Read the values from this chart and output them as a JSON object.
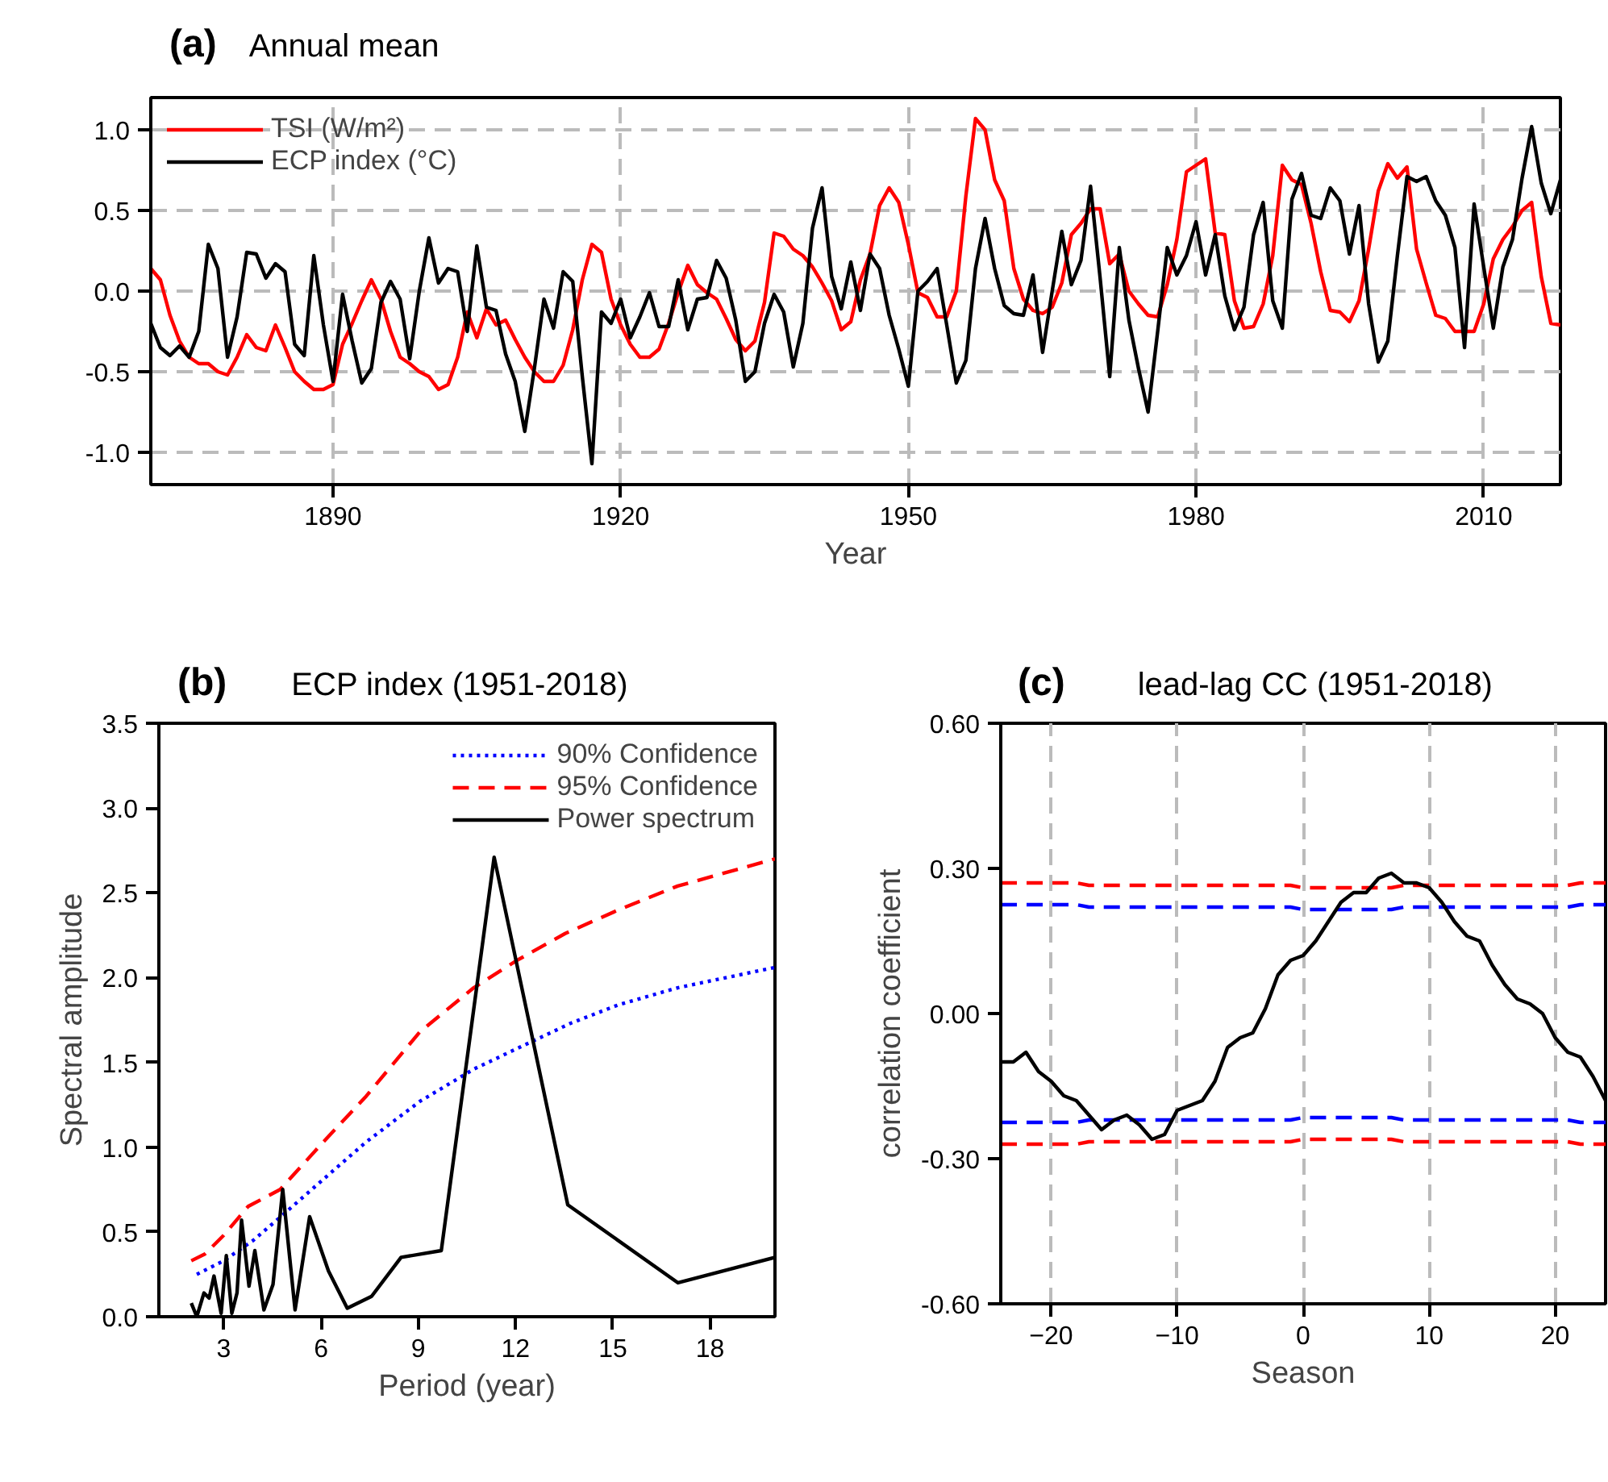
{
  "chart_data": [
    {
      "type": "line",
      "title": "Annual mean",
      "annotations": [
        "(a)"
      ],
      "xlabel": "Year",
      "xlim": [
        1871,
        2018
      ],
      "xticks": [
        1890,
        1920,
        1950,
        1980,
        2010
      ],
      "ylim": [
        -1.2,
        1.2
      ],
      "yticks": [
        {
          "value": -1.0,
          "label": "-1.0"
        },
        {
          "value": -0.5,
          "label": "-0.5"
        },
        {
          "value": 0.0,
          "label": "0.0"
        },
        {
          "value": 0.5,
          "label": "0.5"
        },
        {
          "value": 1.0,
          "label": "1.0"
        }
      ],
      "grid": true,
      "legend": "top left",
      "x": [
        1871,
        1872,
        1873,
        1874,
        1875,
        1876,
        1877,
        1878,
        1879,
        1880,
        1881,
        1882,
        1883,
        1884,
        1885,
        1886,
        1887,
        1888,
        1889,
        1890,
        1891,
        1892,
        1893,
        1894,
        1895,
        1896,
        1897,
        1898,
        1899,
        1900,
        1901,
        1902,
        1903,
        1904,
        1905,
        1906,
        1907,
        1908,
        1909,
        1910,
        1911,
        1912,
        1913,
        1914,
        1915,
        1916,
        1917,
        1918,
        1919,
        1920,
        1921,
        1922,
        1923,
        1924,
        1925,
        1926,
        1927,
        1928,
        1929,
        1930,
        1931,
        1932,
        1933,
        1934,
        1935,
        1936,
        1937,
        1938,
        1939,
        1940,
        1941,
        1942,
        1943,
        1944,
        1945,
        1946,
        1947,
        1948,
        1949,
        1950,
        1951,
        1952,
        1953,
        1954,
        1955,
        1956,
        1957,
        1958,
        1959,
        1960,
        1961,
        1962,
        1963,
        1964,
        1965,
        1966,
        1967,
        1968,
        1969,
        1970,
        1971,
        1972,
        1973,
        1974,
        1975,
        1976,
        1977,
        1978,
        1979,
        1980,
        1981,
        1982,
        1983,
        1984,
        1985,
        1986,
        1987,
        1988,
        1989,
        1990,
        1991,
        1992,
        1993,
        1994,
        1995,
        1996,
        1997,
        1998,
        1999,
        2000,
        2001,
        2002,
        2003,
        2004,
        2005,
        2006,
        2007,
        2008,
        2009,
        2010,
        2011,
        2012,
        2013,
        2014,
        2015,
        2016,
        2017,
        2018
      ],
      "series": [
        {
          "name": "TSI (W/m²)",
          "color": "#ff0000",
          "values": [
            0.14,
            0.07,
            -0.15,
            -0.31,
            -0.41,
            -0.45,
            -0.45,
            -0.5,
            -0.52,
            -0.41,
            -0.27,
            -0.35,
            -0.37,
            -0.21,
            -0.35,
            -0.5,
            -0.56,
            -0.61,
            -0.61,
            -0.58,
            -0.33,
            -0.2,
            -0.06,
            0.07,
            -0.05,
            -0.25,
            -0.41,
            -0.45,
            -0.5,
            -0.53,
            -0.61,
            -0.58,
            -0.41,
            -0.13,
            -0.29,
            -0.11,
            -0.21,
            -0.18,
            -0.3,
            -0.41,
            -0.5,
            -0.56,
            -0.56,
            -0.46,
            -0.24,
            0.07,
            0.29,
            0.24,
            -0.05,
            -0.21,
            -0.33,
            -0.41,
            -0.41,
            -0.36,
            -0.2,
            -0.01,
            0.16,
            0.04,
            -0.01,
            -0.05,
            -0.17,
            -0.3,
            -0.37,
            -0.31,
            -0.07,
            0.36,
            0.34,
            0.26,
            0.22,
            0.15,
            0.05,
            -0.06,
            -0.24,
            -0.19,
            0.07,
            0.23,
            0.53,
            0.64,
            0.55,
            0.29,
            -0.01,
            -0.04,
            -0.16,
            -0.16,
            0.0,
            0.59,
            1.07,
            1.0,
            0.69,
            0.56,
            0.14,
            -0.05,
            -0.12,
            -0.14,
            -0.1,
            0.05,
            0.35,
            0.42,
            0.51,
            0.51,
            0.17,
            0.23,
            0.0,
            -0.08,
            -0.15,
            -0.16,
            0.04,
            0.32,
            0.74,
            0.78,
            0.82,
            0.36,
            0.35,
            -0.06,
            -0.23,
            -0.22,
            -0.08,
            0.22,
            0.78,
            0.69,
            0.66,
            0.42,
            0.12,
            -0.12,
            -0.13,
            -0.19,
            -0.06,
            0.26,
            0.62,
            0.79,
            0.7,
            0.77,
            0.26,
            0.05,
            -0.15,
            -0.17,
            -0.25,
            -0.25,
            -0.25,
            -0.08,
            0.2,
            0.32,
            0.4,
            0.5,
            0.55,
            0.09,
            -0.2,
            -0.21
          ]
        },
        {
          "name": "ECP index (°C)",
          "color": "#000000",
          "values": [
            -0.2,
            -0.35,
            -0.4,
            -0.34,
            -0.41,
            -0.25,
            0.29,
            0.14,
            -0.41,
            -0.16,
            0.24,
            0.23,
            0.08,
            0.17,
            0.12,
            -0.33,
            -0.4,
            0.22,
            -0.21,
            -0.56,
            -0.02,
            -0.31,
            -0.57,
            -0.48,
            -0.07,
            0.06,
            -0.05,
            -0.42,
            0.0,
            0.33,
            0.05,
            0.14,
            0.12,
            -0.25,
            0.28,
            -0.1,
            -0.12,
            -0.39,
            -0.56,
            -0.87,
            -0.48,
            -0.05,
            -0.23,
            0.12,
            0.06,
            -0.53,
            -1.07,
            -0.13,
            -0.2,
            -0.05,
            -0.29,
            -0.16,
            -0.01,
            -0.22,
            -0.22,
            0.07,
            -0.24,
            -0.05,
            -0.04,
            0.19,
            0.08,
            -0.18,
            -0.56,
            -0.5,
            -0.2,
            -0.02,
            -0.13,
            -0.47,
            -0.2,
            0.39,
            0.64,
            0.09,
            -0.11,
            0.18,
            -0.12,
            0.23,
            0.14,
            -0.15,
            -0.36,
            -0.59,
            0.0,
            0.06,
            0.14,
            -0.21,
            -0.57,
            -0.43,
            0.14,
            0.45,
            0.14,
            -0.09,
            -0.14,
            -0.15,
            0.1,
            -0.38,
            0.0,
            0.37,
            0.04,
            0.19,
            0.65,
            0.08,
            -0.53,
            0.27,
            -0.18,
            -0.48,
            -0.75,
            -0.25,
            0.27,
            0.1,
            0.22,
            0.43,
            0.1,
            0.35,
            -0.03,
            -0.24,
            -0.1,
            0.35,
            0.55,
            -0.06,
            -0.23,
            0.57,
            0.73,
            0.47,
            0.45,
            0.64,
            0.56,
            0.23,
            0.53,
            -0.08,
            -0.44,
            -0.31,
            0.22,
            0.71,
            0.68,
            0.71,
            0.56,
            0.47,
            0.27,
            -0.35,
            0.54,
            0.15,
            -0.23,
            0.15,
            0.32,
            0.7,
            1.02,
            0.67,
            0.48,
            0.69
          ]
        }
      ]
    },
    {
      "type": "line",
      "title": "ECP index (1951-2018)",
      "annotations": [
        "(b)"
      ],
      "xlabel": "Period (year)",
      "ylabel": "Spectral amplitude",
      "xlim": [
        1,
        20
      ],
      "xticks": [
        3,
        6,
        9,
        12,
        15,
        18
      ],
      "ylim": [
        0,
        3.5
      ],
      "yticks": [
        {
          "value": 0.0,
          "label": "0.0"
        },
        {
          "value": 0.5,
          "label": "0.5"
        },
        {
          "value": 1.0,
          "label": "1.0"
        },
        {
          "value": 1.5,
          "label": "1.5"
        },
        {
          "value": 2.0,
          "label": "2.0"
        },
        {
          "value": 2.5,
          "label": "2.5"
        },
        {
          "value": 3.0,
          "label": "3.0"
        },
        {
          "value": 3.5,
          "label": "3.5"
        }
      ],
      "legend": "top right",
      "series": [
        {
          "name": "90% Confidence",
          "color": "#0000ff",
          "line_style": "dotted",
          "x": [
            2.17,
            3.0,
            3.91,
            4.82,
            6.07,
            7.39,
            9.05,
            10.71,
            12.03,
            13.69,
            15.18,
            17.0,
            20.0
          ],
          "values": [
            0.25,
            0.33,
            0.45,
            0.6,
            0.81,
            1.03,
            1.27,
            1.46,
            1.58,
            1.73,
            1.84,
            1.94,
            2.06
          ]
        },
        {
          "name": "95% Confidence",
          "color": "#ff0000",
          "line_style": "dashed",
          "x": [
            2.0,
            2.42,
            3.0,
            3.75,
            4.74,
            6.07,
            7.39,
            9.05,
            10.71,
            12.03,
            13.53,
            15.18,
            17.0,
            20.0
          ],
          "values": [
            0.33,
            0.37,
            0.48,
            0.65,
            0.75,
            1.03,
            1.3,
            1.68,
            1.94,
            2.1,
            2.26,
            2.4,
            2.54,
            2.7
          ]
        },
        {
          "name": "Power spectrum",
          "color": "#000000",
          "line_style": "solid",
          "x": [
            2.0,
            2.17,
            2.39,
            2.55,
            2.7,
            2.92,
            3.08,
            3.25,
            3.41,
            3.55,
            3.78,
            3.96,
            4.24,
            4.52,
            4.82,
            5.2,
            5.65,
            6.23,
            6.81,
            7.56,
            8.47,
            9.71,
            11.34,
            13.61,
            17.01,
            20.0
          ],
          "values": [
            0.08,
            0.0,
            0.14,
            0.11,
            0.24,
            0.02,
            0.36,
            0.02,
            0.14,
            0.57,
            0.18,
            0.39,
            0.04,
            0.19,
            0.75,
            0.04,
            0.59,
            0.27,
            0.05,
            0.12,
            0.35,
            0.39,
            2.71,
            0.66,
            0.2,
            0.35
          ]
        }
      ]
    },
    {
      "type": "line",
      "title": "lead-lag CC (1951-2018)",
      "annotations": [
        "(c)"
      ],
      "xlabel": "Season",
      "ylabel": "correlation coefficient",
      "xlim": [
        -24,
        24
      ],
      "xticks": [
        -20,
        -10,
        0,
        10,
        20
      ],
      "ylim": [
        -0.6,
        0.6
      ],
      "yticks": [
        {
          "value": -0.6,
          "label": "-0.60"
        },
        {
          "value": -0.3,
          "label": "-0.30"
        },
        {
          "value": 0.0,
          "label": "0.00"
        },
        {
          "value": 0.3,
          "label": "0.30"
        },
        {
          "value": 0.6,
          "label": "0.60"
        }
      ],
      "grid": "x",
      "series": [
        {
          "color": "#ff0000",
          "line_style": "dashed",
          "x": [
            -24,
            -18,
            -17,
            -1,
            0,
            7,
            8,
            21,
            22,
            24
          ],
          "values": [
            0.27,
            0.27,
            0.265,
            0.265,
            0.26,
            0.26,
            0.265,
            0.265,
            0.27,
            0.27
          ]
        },
        {
          "color": "#0000ff",
          "line_style": "dashed",
          "x": [
            -24,
            -18,
            -17,
            -1,
            0,
            7,
            8,
            21,
            22,
            24
          ],
          "values": [
            0.225,
            0.225,
            0.22,
            0.22,
            0.215,
            0.215,
            0.22,
            0.22,
            0.225,
            0.225
          ]
        },
        {
          "color": "#0000ff",
          "line_style": "dashed",
          "x": [
            -24,
            -18,
            -17,
            -1,
            0,
            7,
            8,
            21,
            22,
            24
          ],
          "values": [
            -0.225,
            -0.225,
            -0.22,
            -0.22,
            -0.215,
            -0.215,
            -0.22,
            -0.22,
            -0.225,
            -0.225
          ]
        },
        {
          "color": "#ff0000",
          "line_style": "dashed",
          "x": [
            -24,
            -18,
            -17,
            -1,
            0,
            7,
            8,
            21,
            22,
            24
          ],
          "values": [
            -0.27,
            -0.27,
            -0.265,
            -0.265,
            -0.26,
            -0.26,
            -0.265,
            -0.265,
            -0.27,
            -0.27
          ]
        },
        {
          "color": "#000000",
          "line_style": "solid",
          "x": [
            -24,
            -23,
            -22,
            -21,
            -20,
            -19,
            -18,
            -17,
            -16,
            -15,
            -14,
            -13,
            -12,
            -11,
            -10,
            -9,
            -8,
            -7,
            -6,
            -5,
            -4,
            -3,
            -2,
            -1,
            0,
            1,
            2,
            3,
            4,
            5,
            6,
            7,
            8,
            9,
            10,
            11,
            12,
            13,
            14,
            15,
            16,
            17,
            18,
            19,
            20,
            21,
            22,
            23,
            24
          ],
          "values": [
            -0.1,
            -0.1,
            -0.08,
            -0.12,
            -0.14,
            -0.17,
            -0.18,
            -0.21,
            -0.24,
            -0.22,
            -0.21,
            -0.23,
            -0.26,
            -0.25,
            -0.2,
            -0.19,
            -0.18,
            -0.14,
            -0.07,
            -0.05,
            -0.04,
            0.01,
            0.08,
            0.11,
            0.12,
            0.15,
            0.19,
            0.23,
            0.25,
            0.25,
            0.28,
            0.29,
            0.27,
            0.27,
            0.26,
            0.23,
            0.19,
            0.16,
            0.15,
            0.1,
            0.06,
            0.03,
            0.02,
            0.0,
            -0.05,
            -0.08,
            -0.09,
            -0.13,
            -0.18
          ]
        }
      ]
    }
  ]
}
